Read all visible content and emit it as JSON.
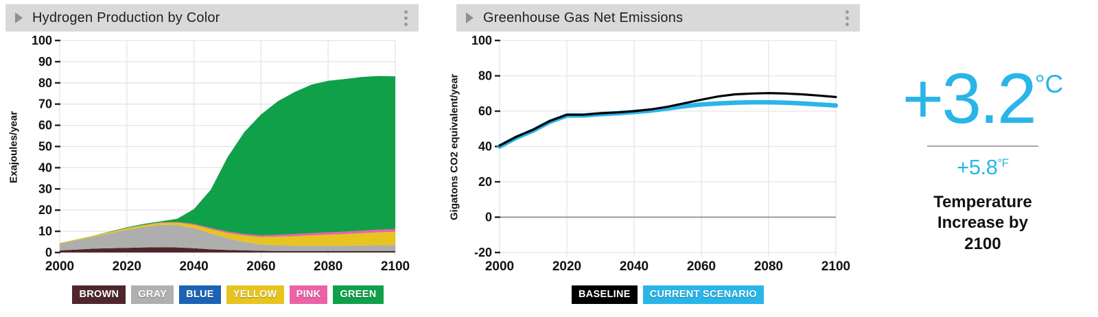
{
  "panels": {
    "hydrogen": {
      "title": "Hydrogen Production by Color",
      "y_axis_label": "Exajoules/year",
      "menu_icon": "kebab-menu",
      "expand_icon": "right-arrow",
      "legend": [
        {
          "label": "BROWN",
          "color": "#4f272b"
        },
        {
          "label": "GRAY",
          "color": "#b0b0b0"
        },
        {
          "label": "BLUE",
          "color": "#1b63b5"
        },
        {
          "label": "YELLOW",
          "color": "#e7c41f"
        },
        {
          "label": "PINK",
          "color": "#ec62a6"
        },
        {
          "label": "GREEN",
          "color": "#10a04a"
        }
      ]
    },
    "emissions": {
      "title": "Greenhouse Gas Net Emissions",
      "y_axis_label": "Gigatons CO2 equivalent/year",
      "menu_icon": "kebab-menu",
      "expand_icon": "right-arrow",
      "legend": [
        {
          "label": "BASELINE",
          "color": "#000000"
        },
        {
          "label": "CURRENT SCENARIO",
          "color": "#29b5e8"
        }
      ]
    }
  },
  "temperature": {
    "value_c": "+3.2",
    "unit_c": "°C",
    "value_f": "+5.8",
    "unit_f": "°F",
    "caption": "Temperature Increase by 2100"
  },
  "colors": {
    "accent_blue": "#29b5e8",
    "header_bg": "#d9d9d9",
    "grid": "#e4e4e4",
    "zero_line": "#999999",
    "axis_text": "#111111"
  },
  "chart_data": [
    {
      "type": "area",
      "stacked": true,
      "title": "Hydrogen Production by Color",
      "xlabel": "",
      "ylabel": "Exajoules/year",
      "xlim": [
        2000,
        2100
      ],
      "ylim": [
        0,
        100
      ],
      "xtick": 20,
      "ytick": 10,
      "grid": true,
      "legend_position": "bottom",
      "x": [
        2000,
        2005,
        2010,
        2015,
        2020,
        2025,
        2030,
        2035,
        2040,
        2045,
        2050,
        2055,
        2060,
        2065,
        2070,
        2075,
        2080,
        2085,
        2090,
        2095,
        2100
      ],
      "series": [
        {
          "name": "BROWN",
          "color": "#4f272b",
          "values": [
            1.0,
            1.4,
            1.8,
            2.0,
            2.2,
            2.4,
            2.5,
            2.4,
            2.0,
            1.5,
            1.2,
            1.0,
            0.8,
            0.75,
            0.7,
            0.7,
            0.7,
            0.7,
            0.7,
            0.7,
            0.7
          ]
        },
        {
          "name": "GRAY",
          "color": "#aeaeae",
          "values": [
            3.2,
            4.4,
            5.5,
            7.0,
            8.5,
            9.6,
            10.5,
            10.5,
            9.5,
            7.5,
            5.5,
            4.0,
            3.0,
            2.7,
            2.5,
            2.5,
            2.5,
            2.5,
            2.6,
            2.7,
            2.8
          ]
        },
        {
          "name": "BLUE",
          "color": "#1b63b5",
          "values": [
            0,
            0,
            0,
            0,
            0,
            0,
            0,
            0,
            0,
            0,
            0,
            0,
            0,
            0,
            0,
            0,
            0,
            0,
            0,
            0,
            0
          ]
        },
        {
          "name": "YELLOW",
          "color": "#e7c41f",
          "values": [
            0.3,
            0.4,
            0.5,
            0.65,
            0.8,
            0.9,
            1.0,
            1.2,
            1.5,
            2.0,
            2.5,
            3.0,
            3.5,
            4.0,
            4.5,
            4.9,
            5.2,
            5.5,
            5.8,
            6.1,
            6.3
          ]
        },
        {
          "name": "PINK",
          "color": "#ec62a6",
          "values": [
            0,
            0,
            0,
            0.05,
            0.1,
            0.15,
            0.2,
            0.3,
            0.5,
            0.6,
            0.7,
            0.75,
            0.8,
            0.9,
            1.0,
            1.05,
            1.1,
            1.15,
            1.2,
            1.25,
            1.3
          ]
        },
        {
          "name": "GREEN",
          "color": "#10a04a",
          "values": [
            0,
            0.05,
            0.1,
            0.2,
            0.3,
            0.4,
            0.5,
            1.5,
            7,
            18,
            35,
            48,
            57,
            63,
            67,
            70,
            71.5,
            72,
            72.5,
            72.5,
            72
          ]
        }
      ]
    },
    {
      "type": "line",
      "title": "Greenhouse Gas Net Emissions",
      "xlabel": "",
      "ylabel": "Gigatons CO2 equivalent/year",
      "xlim": [
        2000,
        2100
      ],
      "ylim": [
        -20,
        100
      ],
      "xtick": 20,
      "ytick": 20,
      "grid": true,
      "zero_line": true,
      "legend_position": "bottom",
      "x": [
        2000,
        2005,
        2010,
        2015,
        2020,
        2025,
        2030,
        2035,
        2040,
        2045,
        2050,
        2055,
        2060,
        2065,
        2070,
        2075,
        2080,
        2085,
        2090,
        2095,
        2100
      ],
      "series": [
        {
          "name": "BASELINE",
          "color": "#000000",
          "width": 3.2,
          "values": [
            40.5,
            45.5,
            49.5,
            54.5,
            58,
            58,
            58.8,
            59.3,
            60,
            61,
            62.5,
            64.5,
            66.5,
            68.3,
            69.5,
            70,
            70.2,
            70,
            69.5,
            68.8,
            68
          ]
        },
        {
          "name": "CURRENT SCENARIO",
          "color": "#29b5e8",
          "width": 6.5,
          "values": [
            40,
            45,
            49,
            54,
            57.5,
            57.6,
            58.3,
            58.8,
            59.5,
            60.3,
            61.5,
            62.8,
            63.8,
            64.4,
            64.8,
            65,
            65,
            64.8,
            64.4,
            63.8,
            63.2
          ]
        }
      ]
    }
  ]
}
